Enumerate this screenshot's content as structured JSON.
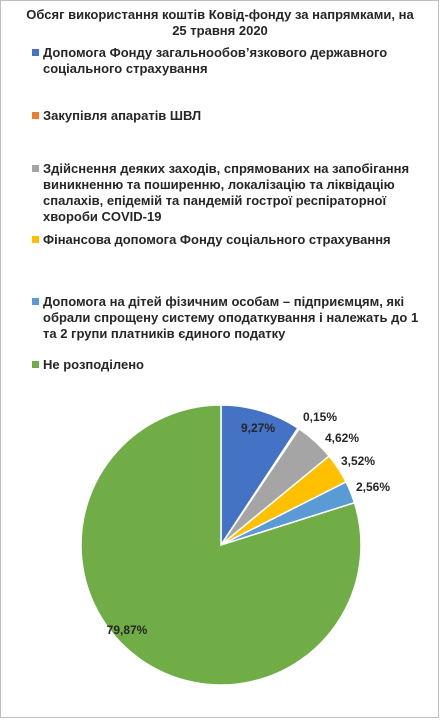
{
  "chart_data": {
    "type": "pie",
    "title": "Обсяг використання коштів Ковід-фонду за напрямками, на 25 травня 2020",
    "legend_placement": "top",
    "series": [
      {
        "name": "Допомога Фонду загальнообов’язкового державного соціального страхування",
        "value": 9.27,
        "label": "9,27%",
        "color": "#4472c4"
      },
      {
        "name": "Закупівля апаратів ШВЛ",
        "value": 0.15,
        "label": "0,15%",
        "color": "#ed7d31"
      },
      {
        "name": "Здійснення деяких заходів, спрямованих на запобігання виникненню та поширенню, локалізацію та ліквідацію спалахів, епідемій та пандемій гострої респіраторної хвороби COVID-19",
        "value": 4.62,
        "label": "4,62%",
        "color": "#a5a5a5"
      },
      {
        "name": "Фінансова допомога Фонду соціального страхування",
        "value": 3.52,
        "label": "3,52%",
        "color": "#ffc000"
      },
      {
        "name": "Допомога на дітей фізичним особам – підприємцям, які обрали спрощену систему оподаткування і  належать до 1 та 2 групи платників єдиного податку",
        "value": 2.56,
        "label": "2,56%",
        "color": "#5b9bd5"
      },
      {
        "name": "Не розподілено",
        "value": 79.87,
        "label": "79,87%",
        "color": "#70ad47"
      }
    ]
  }
}
